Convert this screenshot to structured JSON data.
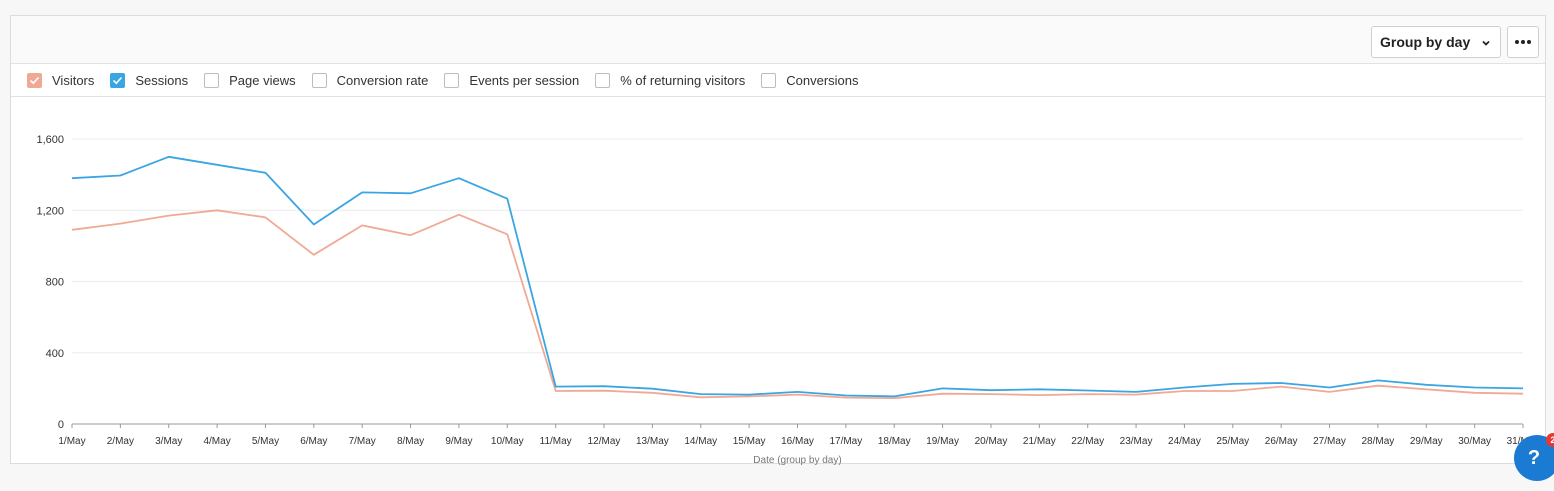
{
  "toolbar": {
    "group_by_label": "Group by day",
    "more_icon": "more-horizontal-icon"
  },
  "legend": [
    {
      "label": "Visitors",
      "checked": true,
      "color": "#f0a994"
    },
    {
      "label": "Sessions",
      "checked": true,
      "color": "#3aa5e3"
    },
    {
      "label": "Page views",
      "checked": false
    },
    {
      "label": "Conversion rate",
      "checked": false
    },
    {
      "label": "Events per session",
      "checked": false
    },
    {
      "label": "% of returning visitors",
      "checked": false
    },
    {
      "label": "Conversions",
      "checked": false
    }
  ],
  "help": {
    "label": "?",
    "badge": "2"
  },
  "chart_data": {
    "type": "line",
    "x": [
      "1/May",
      "2/May",
      "3/May",
      "4/May",
      "5/May",
      "6/May",
      "7/May",
      "8/May",
      "9/May",
      "10/May",
      "11/May",
      "12/May",
      "13/May",
      "14/May",
      "15/May",
      "16/May",
      "17/May",
      "18/May",
      "19/May",
      "20/May",
      "21/May",
      "22/May",
      "23/May",
      "24/May",
      "25/May",
      "26/May",
      "27/May",
      "28/May",
      "29/May",
      "30/May",
      "31/May"
    ],
    "xlabel": "Date (group by day)",
    "ylabel": "",
    "ylim": [
      0,
      1600
    ],
    "yticks": [
      0,
      400,
      800,
      1200,
      1600
    ],
    "ytick_labels": [
      "0",
      "400",
      "800",
      "1,200",
      "1,600"
    ],
    "grid": true,
    "series": [
      {
        "name": "Sessions",
        "color": "#3aa5e3",
        "values": [
          1380,
          1395,
          1500,
          1455,
          1410,
          1120,
          1300,
          1295,
          1380,
          1265,
          210,
          212,
          198,
          168,
          165,
          180,
          160,
          155,
          200,
          190,
          195,
          188,
          180,
          205,
          225,
          230,
          205,
          245,
          220,
          205,
          200
        ]
      },
      {
        "name": "Visitors",
        "color": "#f0a994",
        "values": [
          1090,
          1125,
          1170,
          1200,
          1160,
          950,
          1115,
          1060,
          1175,
          1065,
          185,
          187,
          175,
          150,
          155,
          165,
          148,
          145,
          170,
          168,
          162,
          168,
          165,
          185,
          185,
          210,
          180,
          215,
          195,
          175,
          170
        ]
      }
    ]
  }
}
